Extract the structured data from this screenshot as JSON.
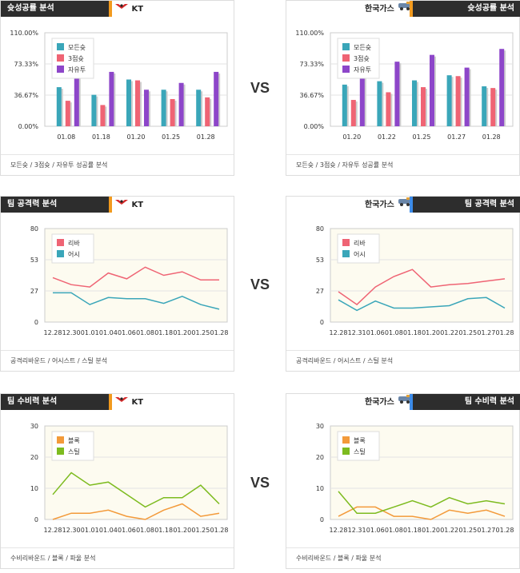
{
  "vs_label": "VS",
  "teams": {
    "home": "KT",
    "away": "한국가스"
  },
  "sections": {
    "shooting": {
      "title": "슛성공률 분석",
      "caption": "모든슛 / 3점슛 / 자유투 성공률 분석"
    },
    "offense": {
      "title": "팀 공격력 분석",
      "caption": "공격리바운드 / 어시스트 / 스틸 분석"
    },
    "defense": {
      "title": "팀 수비력 분석",
      "caption": "수비리바운드 / 블록 / 파울 분석"
    }
  },
  "colors": {
    "teal": "#3aa6b9",
    "pink": "#ef6474",
    "purple": "#8d46c9",
    "orange": "#f39a3a",
    "green": "#7dbb1f",
    "plotbg": "#fdfbf0",
    "header": "#2d2d2d",
    "accent_orange": "#f29a1e",
    "accent_blue": "#3c8be8"
  },
  "chart_data": [
    {
      "id": "shooting-kt",
      "type": "bar",
      "categories": [
        "01.08",
        "01.18",
        "01.20",
        "01.25",
        "01.28"
      ],
      "yticks": [
        "110.00%",
        "73.33%",
        "36.67%",
        "0.00%"
      ],
      "ylim": [
        0,
        110
      ],
      "series": [
        {
          "name": "모든슛",
          "values": [
            46,
            37,
            55,
            43,
            43
          ]
        },
        {
          "name": "3점슛",
          "values": [
            30,
            25,
            54,
            32,
            34
          ]
        },
        {
          "name": "자유투",
          "values": [
            65,
            64,
            43,
            51,
            64
          ]
        }
      ]
    },
    {
      "id": "shooting-gas",
      "type": "bar",
      "categories": [
        "01.20",
        "01.22",
        "01.25",
        "01.27",
        "01.28"
      ],
      "yticks": [
        "110.00%",
        "73.33%",
        "36.67%",
        "0.00%"
      ],
      "ylim": [
        0,
        110
      ],
      "series": [
        {
          "name": "모든슛",
          "values": [
            49,
            53,
            54,
            60,
            47
          ]
        },
        {
          "name": "3점슛",
          "values": [
            31,
            40,
            46,
            59,
            45
          ]
        },
        {
          "name": "자유투",
          "values": [
            62,
            76,
            84,
            69,
            91
          ]
        }
      ]
    },
    {
      "id": "offense-kt",
      "type": "line",
      "categories": [
        "12.28",
        "12.30",
        "01.01",
        "01.04",
        "01.06",
        "01.08",
        "01.18",
        "01.20",
        "01.25",
        "01.28"
      ],
      "yticks": [
        "80",
        "53",
        "27",
        "0"
      ],
      "ylim": [
        0,
        80
      ],
      "series": [
        {
          "name": "리바",
          "values": [
            38,
            32,
            30,
            42,
            37,
            47,
            40,
            43,
            36,
            36
          ]
        },
        {
          "name": "어시",
          "values": [
            25,
            25,
            15,
            21,
            20,
            20,
            16,
            22,
            15,
            11
          ]
        }
      ]
    },
    {
      "id": "offense-gas",
      "type": "line",
      "categories": [
        "12.28",
        "12.31",
        "01.06",
        "01.08",
        "01.18",
        "01.20",
        "01.22",
        "01.25",
        "01.27",
        "01.28"
      ],
      "yticks": [
        "80",
        "53",
        "27",
        "0"
      ],
      "ylim": [
        0,
        80
      ],
      "series": [
        {
          "name": "리바",
          "values": [
            26,
            15,
            30,
            39,
            45,
            30,
            32,
            33,
            35,
            37
          ]
        },
        {
          "name": "어시",
          "values": [
            19,
            10,
            18,
            12,
            12,
            13,
            14,
            20,
            21,
            12
          ]
        }
      ]
    },
    {
      "id": "defense-kt",
      "type": "line",
      "categories": [
        "12.28",
        "12.30",
        "01.01",
        "01.04",
        "01.06",
        "01.08",
        "01.18",
        "01.20",
        "01.25",
        "01.28"
      ],
      "yticks": [
        "30",
        "20",
        "10",
        "0"
      ],
      "ylim": [
        0,
        30
      ],
      "series": [
        {
          "name": "블록",
          "values": [
            0,
            2,
            2,
            3,
            1,
            0,
            3,
            5,
            1,
            2
          ]
        },
        {
          "name": "스틸",
          "values": [
            8,
            15,
            11,
            12,
            8,
            4,
            7,
            7,
            11,
            5
          ]
        }
      ]
    },
    {
      "id": "defense-gas",
      "type": "line",
      "categories": [
        "12.28",
        "12.31",
        "01.06",
        "01.08",
        "01.18",
        "01.20",
        "01.22",
        "01.25",
        "01.27",
        "01.28"
      ],
      "yticks": [
        "30",
        "20",
        "10",
        "0"
      ],
      "ylim": [
        0,
        30
      ],
      "series": [
        {
          "name": "블록",
          "values": [
            1,
            4,
            4,
            1,
            1,
            0,
            3,
            2,
            3,
            1
          ]
        },
        {
          "name": "스틸",
          "values": [
            9,
            2,
            2,
            4,
            6,
            4,
            7,
            5,
            6,
            5
          ]
        }
      ]
    }
  ]
}
